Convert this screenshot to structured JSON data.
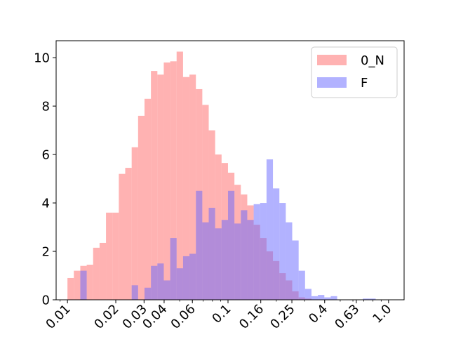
{
  "chart_data": {
    "type": "histogram",
    "x_scale": "log",
    "xlim": [
      0.0085,
      1.25
    ],
    "ylim": [
      0,
      10.7
    ],
    "x_ticks": [
      0.01,
      0.02,
      0.03,
      0.04,
      0.06,
      0.1,
      0.16,
      0.25,
      0.4,
      0.63,
      1.0
    ],
    "x_tick_labels": [
      "0.01",
      "0.02",
      "0.03",
      "0.04",
      "0.06",
      "0.1",
      "0.16",
      "0.25",
      "0.4",
      "0.63",
      "1.0"
    ],
    "y_ticks": [
      0,
      2,
      4,
      6,
      8,
      10
    ],
    "y_tick_labels": [
      "0",
      "2",
      "4",
      "6",
      "8",
      "10"
    ],
    "grid": false,
    "legend_position": "upper-right",
    "bin_edges": [
      0.01,
      0.01096,
      0.01202,
      0.01318,
      0.01445,
      0.01585,
      0.01738,
      0.01905,
      0.02089,
      0.0229,
      0.02512,
      0.02754,
      0.0302,
      0.03311,
      0.03631,
      0.03981,
      0.04365,
      0.04786,
      0.05248,
      0.05754,
      0.0631,
      0.06918,
      0.07586,
      0.08318,
      0.0912,
      0.1,
      0.10965,
      0.12023,
      0.13183,
      0.14454,
      0.15849,
      0.17378,
      0.19055,
      0.20893,
      0.22909,
      0.25119,
      0.27542,
      0.30199,
      0.33113,
      0.36308,
      0.39811,
      0.43652,
      0.47863,
      0.52481,
      0.57544,
      0.63096,
      0.69183,
      0.75858,
      0.83176,
      0.91201,
      1.0
    ],
    "series": [
      {
        "name": "0_N",
        "color": "#ff7f7f",
        "opacity": 0.6,
        "values": [
          0.9,
          1.2,
          1.4,
          1.45,
          2.15,
          2.35,
          3.6,
          3.6,
          5.2,
          5.45,
          6.3,
          7.6,
          8.3,
          9.45,
          9.3,
          9.8,
          9.85,
          10.25,
          9.2,
          9.3,
          8.7,
          8.05,
          7.0,
          6.0,
          5.65,
          5.25,
          4.75,
          4.35,
          3.9,
          3.1,
          2.55,
          2.0,
          1.6,
          1.1,
          0.8,
          0.35,
          0.1,
          0.05,
          0,
          0,
          0,
          0,
          0,
          0,
          0,
          0,
          0,
          0,
          0,
          0
        ]
      },
      {
        "name": "F",
        "color": "#6666ff",
        "opacity": 0.5,
        "values": [
          0,
          0,
          1.2,
          0,
          0,
          0,
          0,
          0,
          0,
          0,
          0.6,
          0,
          0.5,
          1.4,
          1.5,
          0.8,
          2.55,
          1.3,
          1.8,
          1.9,
          4.5,
          3.2,
          3.8,
          2.95,
          3.3,
          4.5,
          3.15,
          3.7,
          3.3,
          3.95,
          4.0,
          5.8,
          4.6,
          4.0,
          3.2,
          2.45,
          1.2,
          0.45,
          0.15,
          0.2,
          0.1,
          0.15,
          0,
          0,
          0,
          0,
          0.05,
          0.05,
          0,
          0
        ]
      }
    ]
  }
}
